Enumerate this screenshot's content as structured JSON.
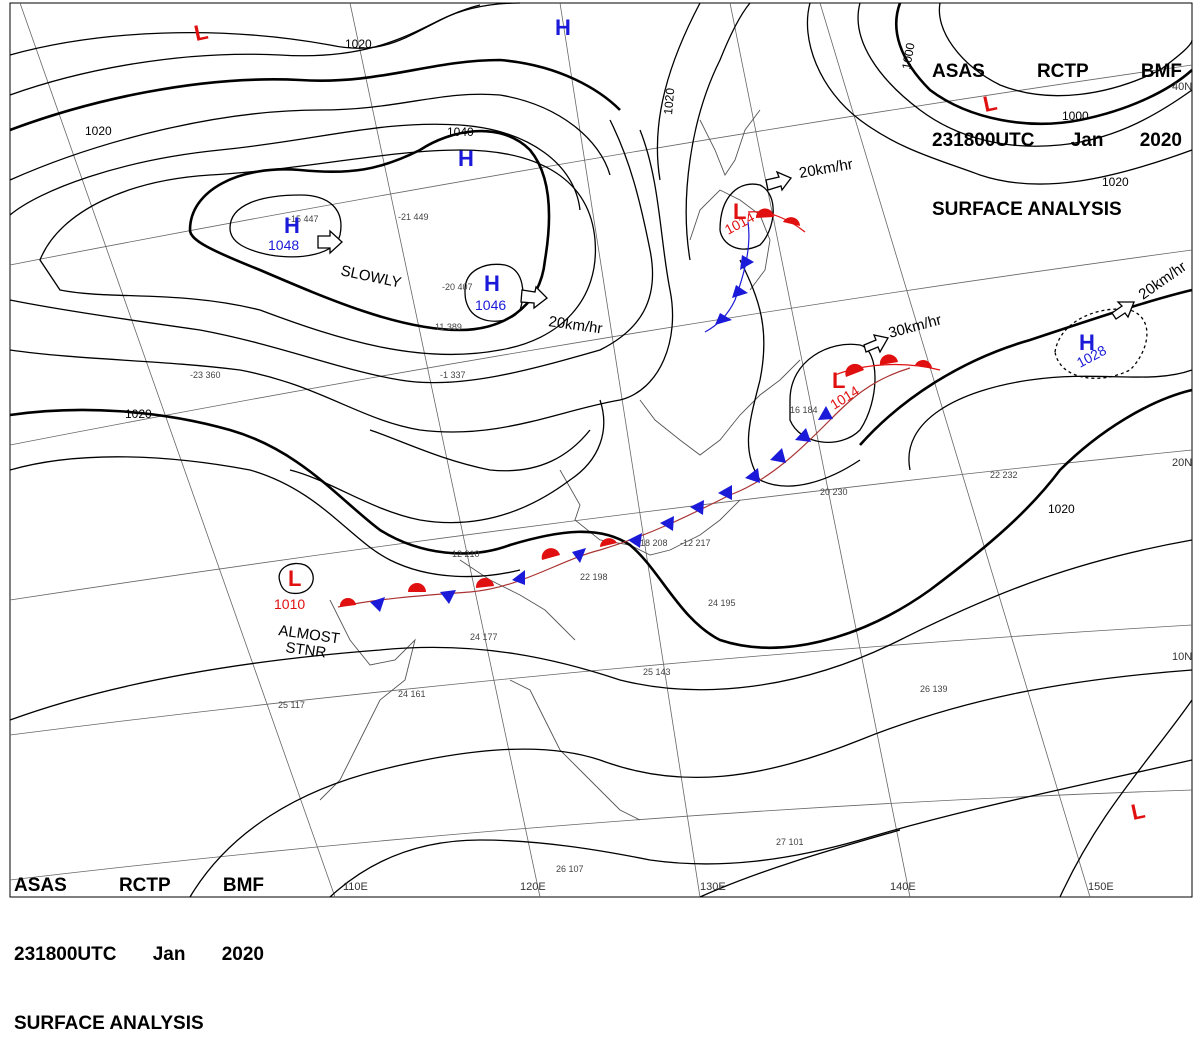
{
  "header": {
    "line1": [
      "ASAS",
      "RCTP",
      "BMF"
    ],
    "line2": [
      "231800UTC",
      "Jan",
      "2020"
    ],
    "line3": "SURFACE ANALYSIS"
  },
  "colors": {
    "high": "#1a1ad8",
    "low": "#e01010",
    "cold_front": "#1a1ad8",
    "warm_front": "#e01010",
    "isobar": "#000000",
    "grid": "#555555"
  },
  "pressure_systems": [
    {
      "id": "high-1048",
      "type": "H",
      "value": "1048"
    },
    {
      "id": "high-1046",
      "type": "H",
      "value": "1046"
    },
    {
      "id": "high-1040-center",
      "type": "H",
      "value": ""
    },
    {
      "id": "high-north",
      "type": "H",
      "value": ""
    },
    {
      "id": "high-1028",
      "type": "H",
      "value": "1028"
    },
    {
      "id": "low-1014-north",
      "type": "L",
      "value": "1014"
    },
    {
      "id": "low-1014-east",
      "type": "L",
      "value": "1014"
    },
    {
      "id": "low-1010",
      "type": "L",
      "value": "1010"
    },
    {
      "id": "low-ne",
      "type": "L",
      "value": ""
    },
    {
      "id": "low-nw",
      "type": "L",
      "value": ""
    },
    {
      "id": "low-se",
      "type": "L",
      "value": ""
    }
  ],
  "movements": {
    "slowly": "SLOWLY",
    "m20_center": "20km/hr",
    "m20_north": "20km/hr",
    "m30_east": "30km/hr",
    "m20_far_east": "20km/hr",
    "almost": "ALMOST",
    "stnr": "STNR"
  },
  "isobar_labels": [
    "1020",
    "1040",
    "1020",
    "1020",
    "1000",
    "1000",
    "1020",
    "1020",
    "1020"
  ],
  "lat_labels": [
    "40N",
    "20N",
    "10N"
  ],
  "lon_labels": [
    "110E",
    "120E",
    "130E",
    "140E",
    "150E"
  ],
  "station_samples": [
    "-15 447",
    "-21 449",
    "-20 407",
    "11 389",
    "-1 337",
    "-23 360",
    "20 230",
    "22 232",
    "24 195",
    "25 143",
    "26 139",
    "24 177",
    "22 198",
    "-12 217",
    "18 208",
    "27 101",
    "26 107",
    "25 117",
    "24 161",
    "12 210",
    "16 184"
  ]
}
